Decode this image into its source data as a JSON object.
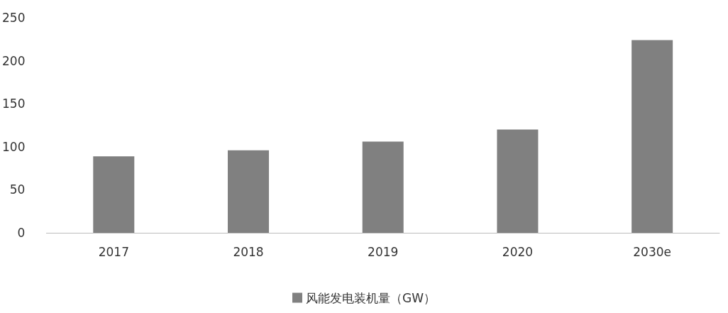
{
  "chart_data": {
    "type": "bar",
    "categories": [
      "2017",
      "2018",
      "2019",
      "2020",
      "2030e"
    ],
    "series": [
      {
        "name": "风能发电装机量（GW）",
        "color": "#808080",
        "values": [
          89,
          96,
          106,
          120,
          224
        ]
      }
    ],
    "ylim": [
      0,
      250
    ],
    "yticks": [
      0,
      50,
      100,
      150,
      200,
      250
    ],
    "grid": false,
    "legend": "bottom"
  }
}
